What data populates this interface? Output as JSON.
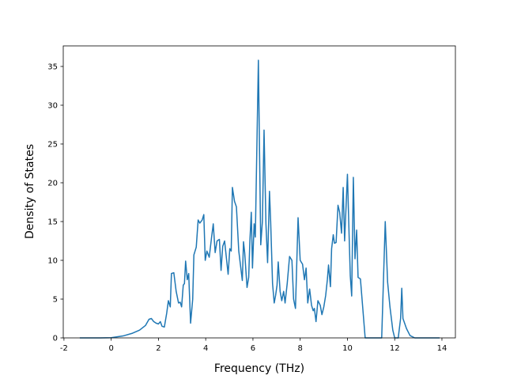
{
  "chart_data": {
    "type": "line",
    "xlabel": "Frequency (THz)",
    "ylabel": "Density of States",
    "x": [
      -1.33,
      -0.5,
      0,
      0.5,
      0.9,
      1.2,
      1.45,
      1.6,
      1.7,
      1.8,
      1.9,
      2.0,
      2.08,
      2.15,
      2.25,
      2.35,
      2.42,
      2.5,
      2.55,
      2.65,
      2.75,
      2.85,
      2.92,
      2.98,
      3.05,
      3.1,
      3.15,
      3.22,
      3.28,
      3.36,
      3.45,
      3.5,
      3.6,
      3.68,
      3.75,
      3.85,
      3.92,
      3.98,
      4.05,
      4.15,
      4.25,
      4.32,
      4.4,
      4.48,
      4.58,
      4.65,
      4.72,
      4.8,
      4.88,
      4.95,
      5.02,
      5.08,
      5.13,
      5.22,
      5.3,
      5.4,
      5.55,
      5.6,
      5.65,
      5.75,
      5.82,
      5.87,
      5.93,
      5.98,
      6.05,
      6.1,
      6.23,
      6.33,
      6.4,
      6.47,
      6.55,
      6.62,
      6.7,
      6.75,
      6.83,
      6.9,
      6.96,
      7.02,
      7.07,
      7.15,
      7.22,
      7.3,
      7.36,
      7.45,
      7.55,
      7.65,
      7.72,
      7.8,
      7.91,
      8.0,
      8.1,
      8.18,
      8.25,
      8.32,
      8.4,
      8.48,
      8.55,
      8.6,
      8.67,
      8.75,
      8.85,
      8.92,
      9.0,
      9.08,
      9.15,
      9.2,
      9.28,
      9.33,
      9.4,
      9.45,
      9.52,
      9.6,
      9.67,
      9.75,
      9.82,
      9.88,
      10.0,
      10.07,
      10.12,
      10.18,
      10.25,
      10.32,
      10.39,
      10.45,
      10.55,
      10.75,
      11.45,
      11.6,
      11.7,
      11.8,
      11.92,
      12.0,
      12.15,
      12.25,
      12.3,
      12.35,
      12.5,
      12.65,
      12.85,
      13.9
    ],
    "series": [
      {
        "color": "#1f77b4",
        "values": [
          0,
          0,
          0.02,
          0.25,
          0.6,
          1.0,
          1.6,
          2.4,
          2.5,
          2.1,
          1.9,
          1.8,
          2.1,
          1.5,
          1.4,
          3.2,
          4.8,
          4.0,
          8.3,
          8.4,
          6.0,
          4.5,
          4.6,
          4.0,
          6.8,
          7.0,
          9.9,
          7.5,
          8.3,
          1.9,
          5.0,
          10.7,
          11.7,
          15.2,
          14.8,
          15.2,
          15.9,
          10.0,
          11.2,
          10.4,
          13.0,
          14.7,
          11.0,
          12.5,
          12.7,
          8.7,
          11.8,
          12.5,
          10.2,
          8.2,
          11.5,
          11.2,
          19.4,
          17.6,
          16.9,
          11.2,
          7.4,
          12.4,
          11.0,
          6.5,
          7.8,
          12.5,
          16.2,
          9.0,
          14.7,
          13.0,
          35.8,
          12.0,
          15.0,
          26.8,
          14.7,
          9.7,
          18.9,
          15.0,
          7.0,
          4.5,
          5.5,
          6.8,
          9.8,
          6.0,
          4.8,
          6.0,
          4.5,
          7.0,
          10.5,
          10.0,
          5.0,
          3.8,
          15.5,
          10.0,
          9.5,
          7.5,
          9.0,
          4.5,
          6.3,
          4.2,
          3.5,
          3.8,
          2.1,
          4.8,
          4.2,
          3.0,
          4.0,
          5.5,
          7.5,
          9.4,
          6.6,
          11.5,
          13.3,
          12.2,
          12.3,
          17.1,
          16.2,
          13.5,
          19.4,
          12.5,
          21.1,
          13.3,
          8.0,
          5.4,
          20.7,
          10.2,
          13.9,
          7.8,
          7.6,
          0,
          0,
          15.0,
          7.2,
          4.0,
          1.0,
          0,
          0,
          2.5,
          6.4,
          2.5,
          1.2,
          0.3,
          0,
          0
        ]
      }
    ],
    "xlim": [
      -2.03,
      14.57
    ],
    "ylim": [
      0,
      37.65
    ],
    "xticks": [
      -2,
      0,
      2,
      4,
      6,
      8,
      10,
      12,
      14
    ],
    "yticks": [
      0,
      5,
      10,
      15,
      20,
      25,
      30,
      35
    ]
  }
}
